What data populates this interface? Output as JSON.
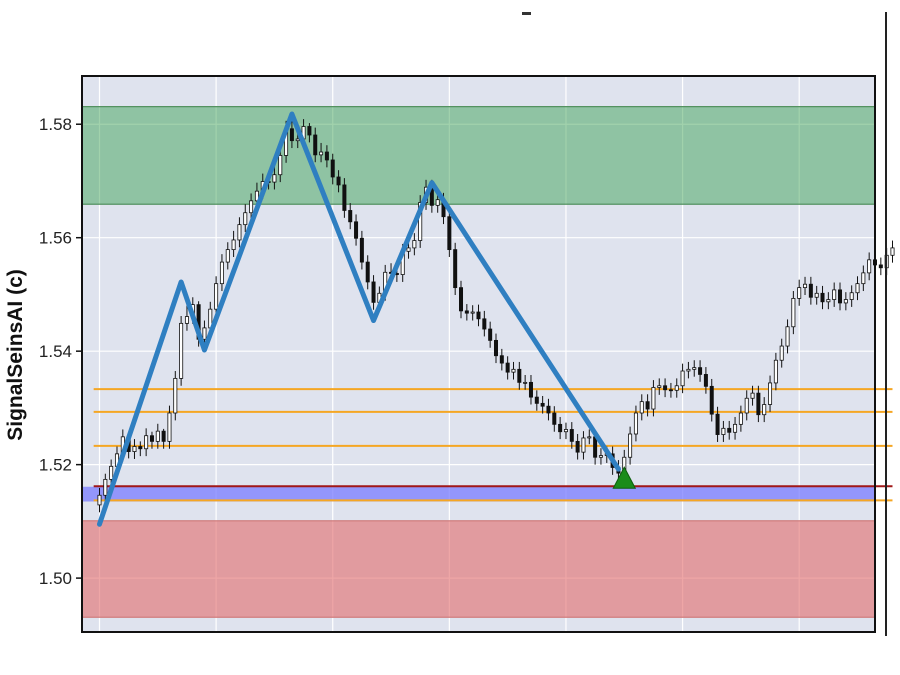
{
  "chart_data": {
    "type": "candlestick",
    "title": "",
    "xlabel": "",
    "ylabel": "SignalSeinsAI (c)",
    "ylim": [
      1.4905,
      1.5885
    ],
    "yticks": [
      1.5,
      1.52,
      1.54,
      1.56,
      1.58
    ],
    "ytick_labels": [
      "1.50",
      "1.52",
      "1.54",
      "1.56",
      "1.58"
    ],
    "xlim": [
      -3,
      133
    ],
    "x_gridlines": [
      0,
      20,
      40,
      60,
      80,
      100,
      120
    ],
    "xticks_labeled": false,
    "grid": true,
    "colors": {
      "background": "#dfe3ee",
      "grid": "#ffffff",
      "candle": "#111111",
      "candle_up_fill": "#ffffff",
      "candle_down_fill": "#111111",
      "zigzag": "#2f7fc1",
      "level_lines": "#f5a623",
      "support_line": "#a01818",
      "resistance_zone": "#2e9b46",
      "demand_zone": "#e26b6b",
      "pivot_band": "#7a7cff",
      "marker": "#1a8c1a"
    },
    "zones": [
      {
        "kind": "resistance",
        "y0": 1.5659,
        "y1": 1.5831
      },
      {
        "kind": "demand",
        "y0": 1.4931,
        "y1": 1.5101
      },
      {
        "kind": "pivot",
        "y0": 1.5135,
        "y1": 1.5161
      }
    ],
    "horizontal_lines": [
      {
        "kind": "level",
        "y": 1.5333,
        "x0": -1,
        "x1": 136
      },
      {
        "kind": "level",
        "y": 1.5293,
        "x0": -1,
        "x1": 136
      },
      {
        "kind": "level",
        "y": 1.5233,
        "x0": -1,
        "x1": 136
      },
      {
        "kind": "level",
        "y": 1.5137,
        "x0": -1,
        "x1": 136
      },
      {
        "kind": "support",
        "y": 1.5162,
        "x0": -1,
        "x1": 136
      }
    ],
    "zigzag": {
      "x": [
        0,
        14,
        18,
        33,
        47,
        57,
        89
      ],
      "y": [
        1.5095,
        1.5522,
        1.5402,
        1.5818,
        1.5454,
        1.5697,
        1.5192
      ]
    },
    "marker": {
      "shape": "triangle-up",
      "x": 90,
      "y": 1.5176
    },
    "candles": {
      "x": [
        0,
        1,
        2,
        3,
        4,
        5,
        6,
        7,
        8,
        9,
        10,
        11,
        12,
        13,
        14,
        15,
        16,
        17,
        18,
        19,
        20,
        21,
        22,
        23,
        24,
        25,
        26,
        27,
        28,
        29,
        30,
        31,
        32,
        33,
        34,
        35,
        36,
        37,
        38,
        39,
        40,
        41,
        42,
        43,
        44,
        45,
        46,
        47,
        48,
        49,
        50,
        51,
        52,
        53,
        54,
        55,
        56,
        57,
        58,
        59,
        60,
        61,
        62,
        63,
        64,
        65,
        66,
        67,
        68,
        69,
        70,
        71,
        72,
        73,
        74,
        75,
        76,
        77,
        78,
        79,
        80,
        81,
        82,
        83,
        84,
        85,
        86,
        87,
        88,
        89,
        90,
        91,
        92,
        93,
        94,
        95,
        96,
        97,
        98,
        99,
        100,
        101,
        102,
        103,
        104,
        105,
        106,
        107,
        108,
        109,
        110,
        111,
        112,
        113,
        114,
        115,
        116,
        117,
        118,
        119,
        120,
        121,
        122,
        123,
        124,
        125,
        126,
        127,
        128,
        129,
        130,
        131,
        132,
        133,
        134,
        135,
        136
      ],
      "open": [
        1.5129,
        1.5146,
        1.5174,
        1.5197,
        1.5219,
        1.5249,
        1.5223,
        1.5232,
        1.5228,
        1.5251,
        1.5241,
        1.5259,
        1.5241,
        1.5291,
        1.5352,
        1.5449,
        1.5461,
        1.5482,
        1.5421,
        1.5441,
        1.5474,
        1.5519,
        1.5557,
        1.5579,
        1.5596,
        1.5623,
        1.5644,
        1.5665,
        1.5682,
        1.5699,
        1.5698,
        1.5711,
        1.5745,
        1.5792,
        1.5771,
        1.5774,
        1.5796,
        1.5781,
        1.5746,
        1.5751,
        1.5737,
        1.5707,
        1.5693,
        1.5648,
        1.5628,
        1.5599,
        1.5557,
        1.5522,
        1.5486,
        1.5502,
        1.5539,
        1.5537,
        1.5535,
        1.5576,
        1.5582,
        1.5595,
        1.5662,
        1.5689,
        1.5657,
        1.5667,
        1.5637,
        1.5579,
        1.5512,
        1.5471,
        1.5467,
        1.5469,
        1.5457,
        1.5439,
        1.5419,
        1.5392,
        1.5379,
        1.5363,
        1.5368,
        1.5345,
        1.5345,
        1.5319,
        1.5308,
        1.5303,
        1.5291,
        1.5271,
        1.5258,
        1.5262,
        1.5241,
        1.5222,
        1.5247,
        1.5249,
        1.5213,
        1.5216,
        1.5219,
        1.5195,
        1.5185,
        1.5213,
        1.5254,
        1.5291,
        1.5311,
        1.5298,
        1.5336,
        1.5339,
        1.5332,
        1.5331,
        1.5339,
        1.5365,
        1.5368,
        1.5371,
        1.5359,
        1.5338,
        1.5289,
        1.5253,
        1.5264,
        1.5257,
        1.5271,
        1.5291,
        1.5317,
        1.5326,
        1.5288,
        1.5306,
        1.5344,
        1.5384,
        1.5409,
        1.5443,
        1.5493,
        1.5512,
        1.5518,
        1.5495,
        1.5502,
        1.5487,
        1.5491,
        1.5508,
        1.5485,
        1.5491,
        1.5503,
        1.5519,
        1.5538,
        1.5561,
        1.5552,
        1.5547,
        1.5569
      ],
      "close": [
        1.5146,
        1.5174,
        1.5197,
        1.5219,
        1.5249,
        1.5223,
        1.5232,
        1.5228,
        1.5251,
        1.5241,
        1.5259,
        1.5241,
        1.5291,
        1.5352,
        1.5449,
        1.5461,
        1.5482,
        1.5421,
        1.5441,
        1.5474,
        1.5519,
        1.5557,
        1.5579,
        1.5596,
        1.5623,
        1.5644,
        1.5665,
        1.5682,
        1.5699,
        1.5698,
        1.5711,
        1.5745,
        1.5792,
        1.5771,
        1.5774,
        1.5796,
        1.5781,
        1.5746,
        1.5751,
        1.5737,
        1.5707,
        1.5693,
        1.5648,
        1.5628,
        1.5599,
        1.5557,
        1.5522,
        1.5486,
        1.5502,
        1.5539,
        1.5537,
        1.5535,
        1.5576,
        1.5582,
        1.5595,
        1.5662,
        1.5689,
        1.5657,
        1.5667,
        1.5637,
        1.5579,
        1.5512,
        1.5471,
        1.5467,
        1.5469,
        1.5457,
        1.5439,
        1.5419,
        1.5392,
        1.5379,
        1.5363,
        1.5368,
        1.5345,
        1.5345,
        1.5319,
        1.5308,
        1.5303,
        1.5291,
        1.5271,
        1.5258,
        1.5262,
        1.5241,
        1.5222,
        1.5247,
        1.5249,
        1.5213,
        1.5216,
        1.5219,
        1.5195,
        1.5185,
        1.5213,
        1.5254,
        1.5291,
        1.5311,
        1.5298,
        1.5336,
        1.5339,
        1.5332,
        1.5331,
        1.5339,
        1.5365,
        1.5368,
        1.5371,
        1.5359,
        1.5338,
        1.5289,
        1.5253,
        1.5264,
        1.5257,
        1.5271,
        1.5291,
        1.5317,
        1.5326,
        1.5288,
        1.5306,
        1.5344,
        1.5384,
        1.5409,
        1.5443,
        1.5493,
        1.5512,
        1.5518,
        1.5495,
        1.5502,
        1.5487,
        1.5491,
        1.5508,
        1.5485,
        1.5491,
        1.5503,
        1.5519,
        1.5538,
        1.5561,
        1.5552,
        1.5547,
        1.5569,
        1.5582
      ],
      "high": [
        1.5159,
        1.5184,
        1.5209,
        1.5232,
        1.5262,
        1.5256,
        1.5245,
        1.5241,
        1.5264,
        1.5258,
        1.5272,
        1.5263,
        1.5304,
        1.5365,
        1.5462,
        1.5481,
        1.5495,
        1.5488,
        1.5454,
        1.5487,
        1.5532,
        1.5571,
        1.5592,
        1.5612,
        1.5636,
        1.5659,
        1.5678,
        1.5697,
        1.5713,
        1.5716,
        1.5726,
        1.5758,
        1.5806,
        1.5812,
        1.5791,
        1.5809,
        1.5802,
        1.5794,
        1.5767,
        1.5763,
        1.5748,
        1.5719,
        1.5705,
        1.5661,
        1.5641,
        1.5612,
        1.5569,
        1.5534,
        1.5514,
        1.5552,
        1.5555,
        1.5551,
        1.5589,
        1.5595,
        1.5608,
        1.5675,
        1.5702,
        1.5702,
        1.5681,
        1.5679,
        1.5651,
        1.5591,
        1.5524,
        1.5483,
        1.5481,
        1.5482,
        1.5471,
        1.5452,
        1.5431,
        1.5404,
        1.5391,
        1.5381,
        1.5381,
        1.5358,
        1.5358,
        1.5331,
        1.5321,
        1.5316,
        1.5303,
        1.5284,
        1.5274,
        1.5275,
        1.5254,
        1.5259,
        1.5262,
        1.5261,
        1.5229,
        1.5232,
        1.5232,
        1.5208,
        1.5226,
        1.5267,
        1.5304,
        1.5324,
        1.5324,
        1.5349,
        1.5352,
        1.5352,
        1.5344,
        1.5352,
        1.5378,
        1.5381,
        1.5384,
        1.5384,
        1.5372,
        1.5351,
        1.5302,
        1.5277,
        1.5277,
        1.5284,
        1.5304,
        1.5331,
        1.5339,
        1.5339,
        1.5319,
        1.5357,
        1.5397,
        1.5422,
        1.5456,
        1.5506,
        1.5526,
        1.5531,
        1.5531,
        1.5515,
        1.5515,
        1.5504,
        1.5521,
        1.5521,
        1.5504,
        1.5516,
        1.5532,
        1.5551,
        1.5574,
        1.5574,
        1.5565,
        1.5582,
        1.5595
      ],
      "low": [
        1.5116,
        1.5133,
        1.5161,
        1.5184,
        1.5206,
        1.5211,
        1.521,
        1.5215,
        1.5215,
        1.5228,
        1.5228,
        1.5228,
        1.5228,
        1.5278,
        1.5339,
        1.5436,
        1.5448,
        1.5408,
        1.5408,
        1.5428,
        1.5461,
        1.5506,
        1.5544,
        1.5566,
        1.5583,
        1.561,
        1.5631,
        1.5652,
        1.5669,
        1.5685,
        1.5685,
        1.5698,
        1.5732,
        1.5758,
        1.5758,
        1.5761,
        1.5768,
        1.5733,
        1.5733,
        1.5724,
        1.5694,
        1.568,
        1.5635,
        1.5615,
        1.5586,
        1.5544,
        1.5509,
        1.5473,
        1.5473,
        1.5489,
        1.5524,
        1.5522,
        1.5522,
        1.5563,
        1.5569,
        1.5582,
        1.5649,
        1.5644,
        1.5644,
        1.5624,
        1.5566,
        1.5499,
        1.5458,
        1.5454,
        1.5454,
        1.5444,
        1.5426,
        1.5406,
        1.5379,
        1.5366,
        1.535,
        1.535,
        1.5332,
        1.5332,
        1.5306,
        1.5295,
        1.529,
        1.5278,
        1.5258,
        1.5245,
        1.5245,
        1.5228,
        1.5209,
        1.5209,
        1.5236,
        1.52,
        1.52,
        1.5203,
        1.5182,
        1.5172,
        1.5172,
        1.52,
        1.5241,
        1.5278,
        1.5285,
        1.5285,
        1.5323,
        1.5319,
        1.5318,
        1.5318,
        1.5326,
        1.5352,
        1.5355,
        1.5346,
        1.5325,
        1.5276,
        1.524,
        1.524,
        1.5244,
        1.5244,
        1.5258,
        1.5278,
        1.5304,
        1.5275,
        1.5275,
        1.5293,
        1.5331,
        1.5371,
        1.5396,
        1.543,
        1.548,
        1.5499,
        1.5482,
        1.5482,
        1.5474,
        1.5474,
        1.5478,
        1.5472,
        1.5472,
        1.5478,
        1.549,
        1.5506,
        1.5525,
        1.5539,
        1.5534,
        1.5534,
        1.5556
      ]
    }
  }
}
